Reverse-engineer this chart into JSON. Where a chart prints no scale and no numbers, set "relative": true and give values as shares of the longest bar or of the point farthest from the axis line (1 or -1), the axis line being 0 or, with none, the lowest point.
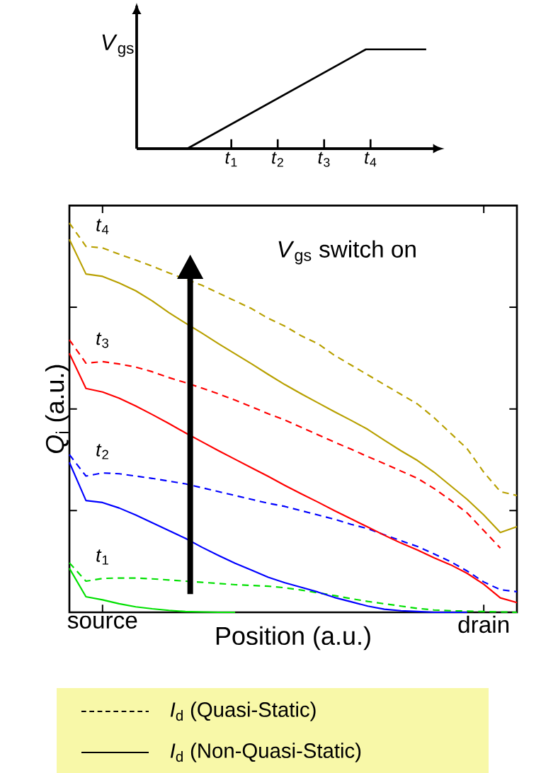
{
  "chart_data": [
    {
      "type": "line",
      "relative": true,
      "ylabel": "*V*$_{gs}$",
      "x": [
        -1.04,
        0.05,
        3.9,
        5.2
      ],
      "values": [
        0,
        0,
        1,
        1
      ],
      "color": "#000000",
      "xlim": [
        -1.04,
        5.4
      ],
      "xticks": [
        {
          "value": 1,
          "label": "*t*$_{1}$"
        },
        {
          "value": 2,
          "label": "*t*$_{2}$"
        },
        {
          "value": 3,
          "label": "*t*$_{3}$"
        },
        {
          "value": 4,
          "label": "*t*$_{4}$"
        }
      ]
    },
    {
      "type": "line",
      "relative": true,
      "xlabel": "Position (a.u.)",
      "ylabel": "*Q*$_{i}$ (a.u.)",
      "categories": [
        null,
        null,
        "source",
        null,
        null,
        null,
        null,
        null,
        null,
        null,
        null,
        null,
        null,
        null,
        null,
        null,
        null,
        null,
        null,
        null,
        null,
        null,
        null,
        null,
        null,
        "drain",
        null,
        null
      ],
      "series": [
        {
          "color": "#00e000",
          "line_style": "dashed",
          "values": [
            0.127,
            0.08,
            0.087,
            0.088,
            0.088,
            0.086,
            0.083,
            0.08,
            0.077,
            0.074,
            0.071,
            0.069,
            0.067,
            0.063,
            0.057,
            0.05,
            0.043,
            0.035,
            0.028,
            0.022,
            0.016,
            0.01,
            0.006,
            0.004,
            0.003,
            0.002,
            0.001,
            0
          ]
        },
        {
          "color": "#00e000",
          "line_style": "solid",
          "values": [
            0.113,
            0.04,
            0.032,
            0.022,
            0.014,
            0.009,
            0.005,
            0.002,
            0.001,
            0,
            0,
            null,
            null,
            null,
            null,
            null,
            null,
            null,
            null,
            null,
            null,
            null,
            null,
            null,
            null,
            null,
            null,
            null
          ]
        },
        {
          "color": "#0000ff",
          "line_style": "dashed",
          "values": [
            0.405,
            0.35,
            0.358,
            0.356,
            0.35,
            0.344,
            0.337,
            0.33,
            0.32,
            0.31,
            0.3,
            0.29,
            0.28,
            0.272,
            0.261,
            0.25,
            0.239,
            0.226,
            0.215,
            0.199,
            0.184,
            0.169,
            0.15,
            0.13,
            0.106,
            0.078,
            0.058,
            0.053
          ]
        },
        {
          "color": "#0000ff",
          "line_style": "solid",
          "values": [
            0.385,
            0.287,
            0.282,
            0.268,
            0.25,
            0.23,
            0.21,
            0.19,
            0.167,
            0.146,
            0.126,
            0.108,
            0.09,
            0.076,
            0.064,
            0.052,
            0.038,
            0.027,
            0.016,
            0.008,
            0.004,
            0.002,
            0,
            0,
            0,
            null,
            null,
            null
          ]
        },
        {
          "color": "#ff0000",
          "line_style": "dashed",
          "values": [
            0.7,
            0.64,
            0.644,
            0.638,
            0.63,
            0.618,
            0.603,
            0.59,
            0.576,
            0.561,
            0.545,
            0.528,
            0.51,
            0.494,
            0.475,
            0.456,
            0.437,
            0.419,
            0.4,
            0.382,
            0.363,
            0.344,
            0.318,
            0.288,
            0.255,
            0.21,
            0.165,
            null
          ]
        },
        {
          "color": "#ff0000",
          "line_style": "solid",
          "values": [
            0.665,
            0.575,
            0.566,
            0.55,
            0.53,
            0.508,
            0.485,
            0.461,
            0.438,
            0.415,
            0.393,
            0.371,
            0.349,
            0.326,
            0.304,
            0.283,
            0.261,
            0.24,
            0.219,
            0.198,
            0.178,
            0.16,
            0.14,
            0.122,
            0.1,
            0.072,
            0.037,
            0.025
          ]
        },
        {
          "color": "#b8a000",
          "line_style": "dashed",
          "values": [
            1.0,
            0.94,
            0.936,
            0.92,
            0.905,
            0.889,
            0.872,
            0.856,
            0.84,
            0.82,
            0.8,
            0.78,
            0.755,
            0.735,
            0.71,
            0.69,
            0.66,
            0.635,
            0.61,
            0.585,
            0.56,
            0.535,
            0.5,
            0.46,
            0.42,
            0.36,
            0.31,
            0.3
          ]
        },
        {
          "color": "#b8a000",
          "line_style": "solid",
          "values": [
            0.958,
            0.869,
            0.863,
            0.846,
            0.826,
            0.8,
            0.77,
            0.743,
            0.717,
            0.69,
            0.664,
            0.638,
            0.611,
            0.585,
            0.561,
            0.538,
            0.515,
            0.493,
            0.47,
            0.442,
            0.415,
            0.39,
            0.36,
            0.325,
            0.29,
            0.25,
            0.205,
            0.22
          ]
        }
      ],
      "annotations": [
        "*t*$_{4}$",
        "*t*$_{3}$",
        "*t*$_{2}$",
        "*t*$_{1}$",
        "*V*$_{gs}$ switch on",
        "*I*$_{d}$ (Quasi-Static)",
        "*I*$_{d}$ (Non-Quasi-Static)"
      ]
    }
  ]
}
